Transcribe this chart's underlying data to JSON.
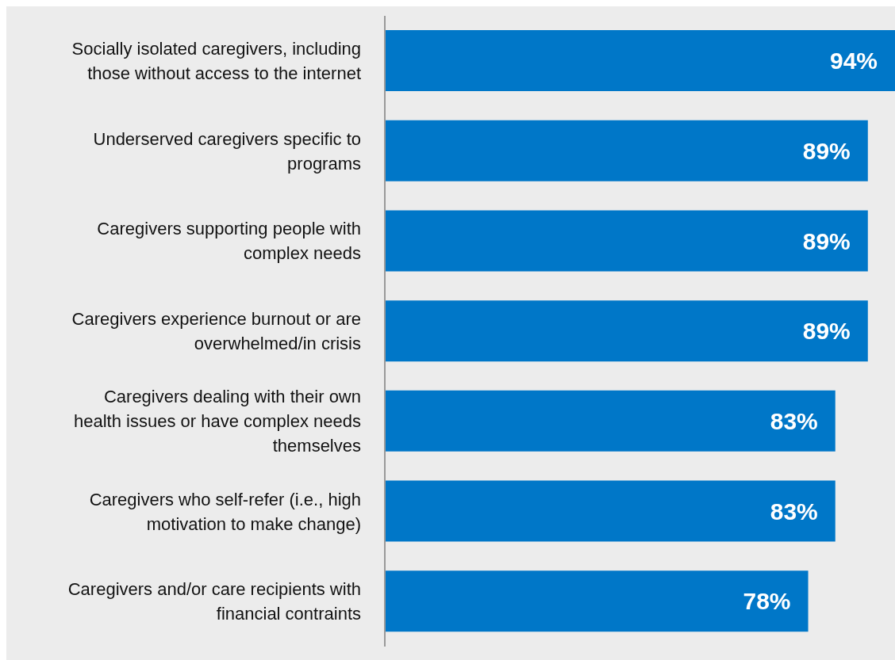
{
  "chart_data": {
    "type": "bar",
    "orientation": "horizontal",
    "categories": [
      "Socially isolated caregivers, including those without access to the internet",
      "Underserved caregivers specific to programs",
      "Caregivers supporting people with complex needs",
      "Caregivers experience burnout or are overwhelmed/in crisis",
      "Caregivers dealing with their own health issues or have complex needs themselves",
      "Caregivers who self-refer (i.e., high motivation to make change)",
      "Caregivers and/or care recipients with financial contraints"
    ],
    "values": [
      94,
      89,
      89,
      89,
      83,
      83,
      78
    ],
    "value_labels": [
      "94%",
      "89%",
      "89%",
      "89%",
      "83%",
      "83%",
      "78%"
    ],
    "color": "#0077c8",
    "grid": false
  }
}
